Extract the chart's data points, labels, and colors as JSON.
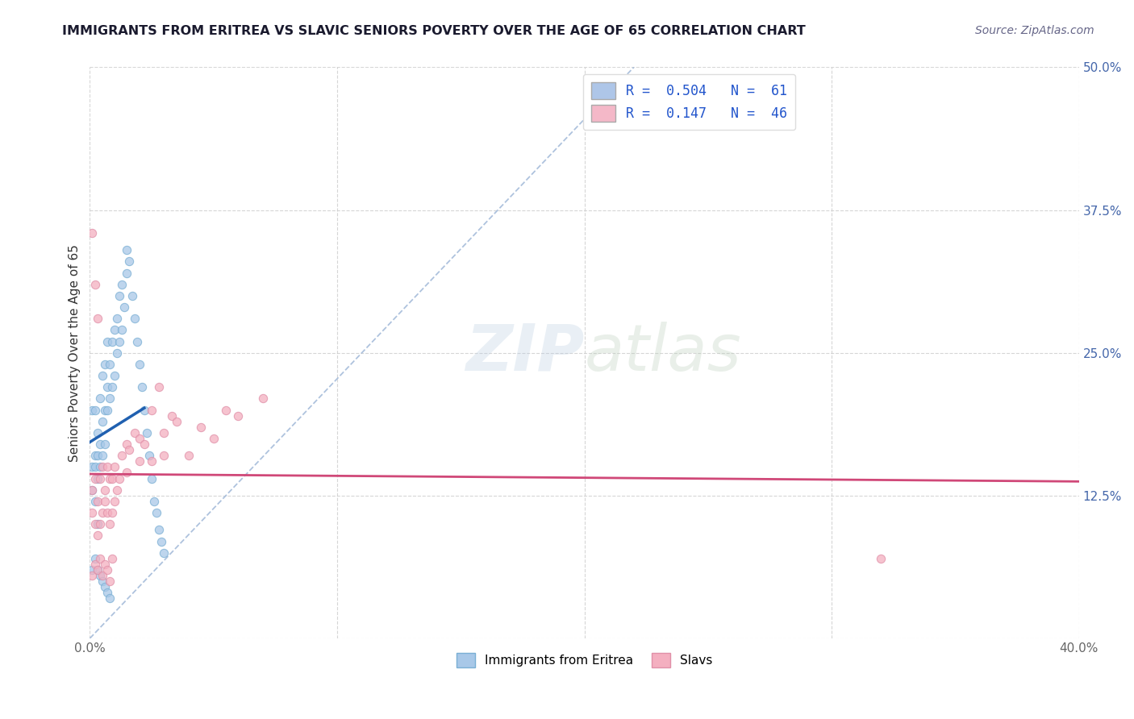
{
  "title": "IMMIGRANTS FROM ERITREA VS SLAVIC SENIORS POVERTY OVER THE AGE OF 65 CORRELATION CHART",
  "source": "Source: ZipAtlas.com",
  "ylabel": "Seniors Poverty Over the Age of 65",
  "xlim": [
    0.0,
    0.4
  ],
  "ylim": [
    0.0,
    0.5
  ],
  "eritrea_color": "#a8c8e8",
  "eritrea_edge": "#7aafd4",
  "slavs_color": "#f4afc0",
  "slavs_edge": "#e090a8",
  "eritrea_line_color": "#2060b0",
  "slavs_line_color": "#d04878",
  "diag_line_color": "#a0b8d8",
  "background_color": "#ffffff",
  "grid_color": "#cccccc",
  "scatter_alpha": 0.75,
  "scatter_size": 55,
  "legend_blue_color": "#aec6e8",
  "legend_pink_color": "#f4b8c8",
  "legend_text_color": "#2255cc",
  "eritrea_x": [
    0.001,
    0.001,
    0.001,
    0.002,
    0.002,
    0.002,
    0.002,
    0.003,
    0.003,
    0.003,
    0.003,
    0.004,
    0.004,
    0.004,
    0.005,
    0.005,
    0.005,
    0.006,
    0.006,
    0.006,
    0.007,
    0.007,
    0.007,
    0.008,
    0.008,
    0.009,
    0.009,
    0.01,
    0.01,
    0.011,
    0.011,
    0.012,
    0.012,
    0.013,
    0.013,
    0.014,
    0.015,
    0.015,
    0.016,
    0.017,
    0.018,
    0.019,
    0.02,
    0.021,
    0.022,
    0.023,
    0.024,
    0.025,
    0.026,
    0.027,
    0.028,
    0.029,
    0.03,
    0.001,
    0.002,
    0.003,
    0.004,
    0.005,
    0.006,
    0.007,
    0.008
  ],
  "eritrea_y": [
    0.13,
    0.15,
    0.2,
    0.12,
    0.15,
    0.16,
    0.2,
    0.14,
    0.16,
    0.18,
    0.1,
    0.15,
    0.17,
    0.21,
    0.16,
    0.19,
    0.23,
    0.17,
    0.2,
    0.24,
    0.2,
    0.22,
    0.26,
    0.21,
    0.24,
    0.22,
    0.26,
    0.23,
    0.27,
    0.25,
    0.28,
    0.26,
    0.3,
    0.27,
    0.31,
    0.29,
    0.32,
    0.34,
    0.33,
    0.3,
    0.28,
    0.26,
    0.24,
    0.22,
    0.2,
    0.18,
    0.16,
    0.14,
    0.12,
    0.11,
    0.095,
    0.085,
    0.075,
    0.06,
    0.07,
    0.06,
    0.055,
    0.05,
    0.045,
    0.04,
    0.035
  ],
  "slavs_x": [
    0.001,
    0.001,
    0.002,
    0.002,
    0.003,
    0.003,
    0.004,
    0.004,
    0.005,
    0.005,
    0.006,
    0.006,
    0.007,
    0.007,
    0.008,
    0.008,
    0.009,
    0.009,
    0.01,
    0.01,
    0.011,
    0.012,
    0.013,
    0.015,
    0.015,
    0.016,
    0.018,
    0.02,
    0.02,
    0.022,
    0.025,
    0.025,
    0.028,
    0.03,
    0.03,
    0.033,
    0.035,
    0.04,
    0.045,
    0.05,
    0.055,
    0.06,
    0.07,
    0.32,
    0.001,
    0.002,
    0.003
  ],
  "slavs_y": [
    0.11,
    0.13,
    0.1,
    0.14,
    0.09,
    0.12,
    0.1,
    0.14,
    0.11,
    0.15,
    0.12,
    0.13,
    0.11,
    0.15,
    0.1,
    0.14,
    0.11,
    0.14,
    0.12,
    0.15,
    0.13,
    0.14,
    0.16,
    0.17,
    0.145,
    0.165,
    0.18,
    0.155,
    0.175,
    0.17,
    0.155,
    0.2,
    0.22,
    0.16,
    0.18,
    0.195,
    0.19,
    0.16,
    0.185,
    0.175,
    0.2,
    0.195,
    0.21,
    0.07,
    0.355,
    0.31,
    0.28
  ],
  "slavs_x2": [
    0.001,
    0.002,
    0.003,
    0.004,
    0.005,
    0.006,
    0.007,
    0.008,
    0.009
  ],
  "slavs_y2": [
    0.055,
    0.065,
    0.06,
    0.07,
    0.055,
    0.065,
    0.06,
    0.05,
    0.07
  ]
}
